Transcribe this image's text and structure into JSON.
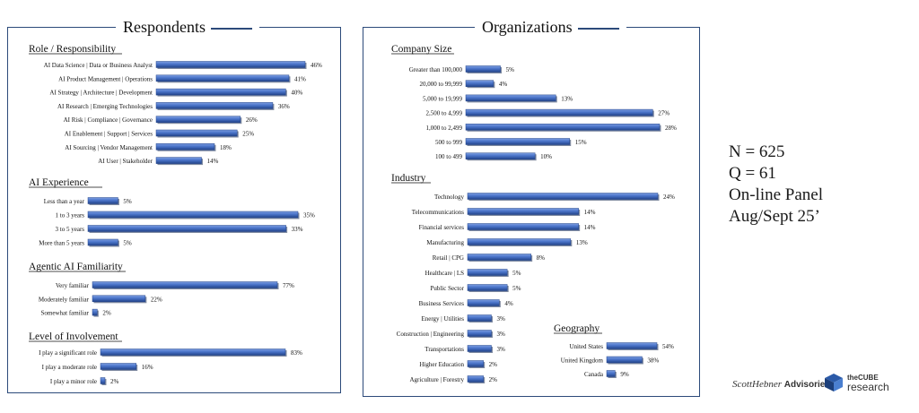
{
  "panels": {
    "respondents_title": "Respondents",
    "organizations_title": "Organizations"
  },
  "stats": {
    "n": "N = 625",
    "q": "Q = 61",
    "panel": "On-line Panel",
    "date": "Aug/Sept 25’"
  },
  "logos": {
    "advisories_script": "ScottHebner",
    "advisories_word": "Advisories",
    "cube_top": "theCUBE",
    "cube_bottom": "research"
  },
  "colors": {
    "bar": "#4a74c9",
    "bar_dark": "#2a4f9c",
    "frame": "#2c4a7a"
  },
  "chart_data": [
    {
      "type": "bar",
      "orientation": "horizontal",
      "title": "Role / Responsibility",
      "xlim": [
        0,
        50
      ],
      "categories": [
        "AI Data Science | Data or Business Analyst",
        "AI Product Management | Operations",
        "AI Strategy | Architecture | Development",
        "AI Research | Emerging Technologies",
        "AI Risk | Compliance | Governance",
        "AI Enablement | Support | Services",
        "AI Sourcing | Vendor Management",
        "AI User | Stakeholder"
      ],
      "values": [
        46,
        41,
        40,
        36,
        26,
        25,
        18,
        14
      ]
    },
    {
      "type": "bar",
      "orientation": "horizontal",
      "title": "AI Experience",
      "xlim": [
        0,
        50
      ],
      "categories": [
        "Less than a year",
        "1 to 3 years",
        "3 to 5 years",
        "More than 5 years"
      ],
      "values": [
        5,
        35,
        33,
        5
      ]
    },
    {
      "type": "bar",
      "orientation": "horizontal",
      "title": "Agentic AI Familiarity",
      "xlim": [
        0,
        100
      ],
      "categories": [
        "Very familiar",
        "Moderately familiar",
        "Somewhat familiar"
      ],
      "values": [
        77,
        22,
        2
      ]
    },
    {
      "type": "bar",
      "orientation": "horizontal",
      "title": "Level of Involvement",
      "xlim": [
        0,
        100
      ],
      "categories": [
        "I play a significant role",
        "I play a moderate role",
        "I play a minor role"
      ],
      "values": [
        83,
        16,
        2
      ]
    },
    {
      "type": "bar",
      "orientation": "horizontal",
      "title": "Company Size",
      "xlim": [
        0,
        28
      ],
      "categories": [
        "Greater than 100,000",
        "20,000 to 99,999",
        "5,000 to 19,999",
        "2,500 to 4,999",
        "1,000 to 2,499",
        "500 to 999",
        "100 to 499"
      ],
      "values": [
        5,
        4,
        13,
        27,
        28,
        15,
        10
      ]
    },
    {
      "type": "bar",
      "orientation": "horizontal",
      "title": "Industry",
      "xlim": [
        0,
        25
      ],
      "categories": [
        "Technology",
        "Telecommunications",
        "Financial services",
        "Manufacturing",
        "Retail | CPG",
        "Healthcare | LS",
        "Public Sector",
        "Business Services",
        "Energy | Utilities",
        "Construction | Engineering",
        "Transportations",
        "Higher Education",
        "Agriculture | Forestry"
      ],
      "values": [
        24,
        14,
        14,
        13,
        8,
        5,
        5,
        4,
        3,
        3,
        3,
        2,
        2
      ]
    },
    {
      "type": "bar",
      "orientation": "horizontal",
      "title": "Geography",
      "xlim": [
        0,
        60
      ],
      "categories": [
        "United States",
        "United Kingdom",
        "Canada"
      ],
      "values": [
        54,
        38,
        9
      ]
    }
  ]
}
